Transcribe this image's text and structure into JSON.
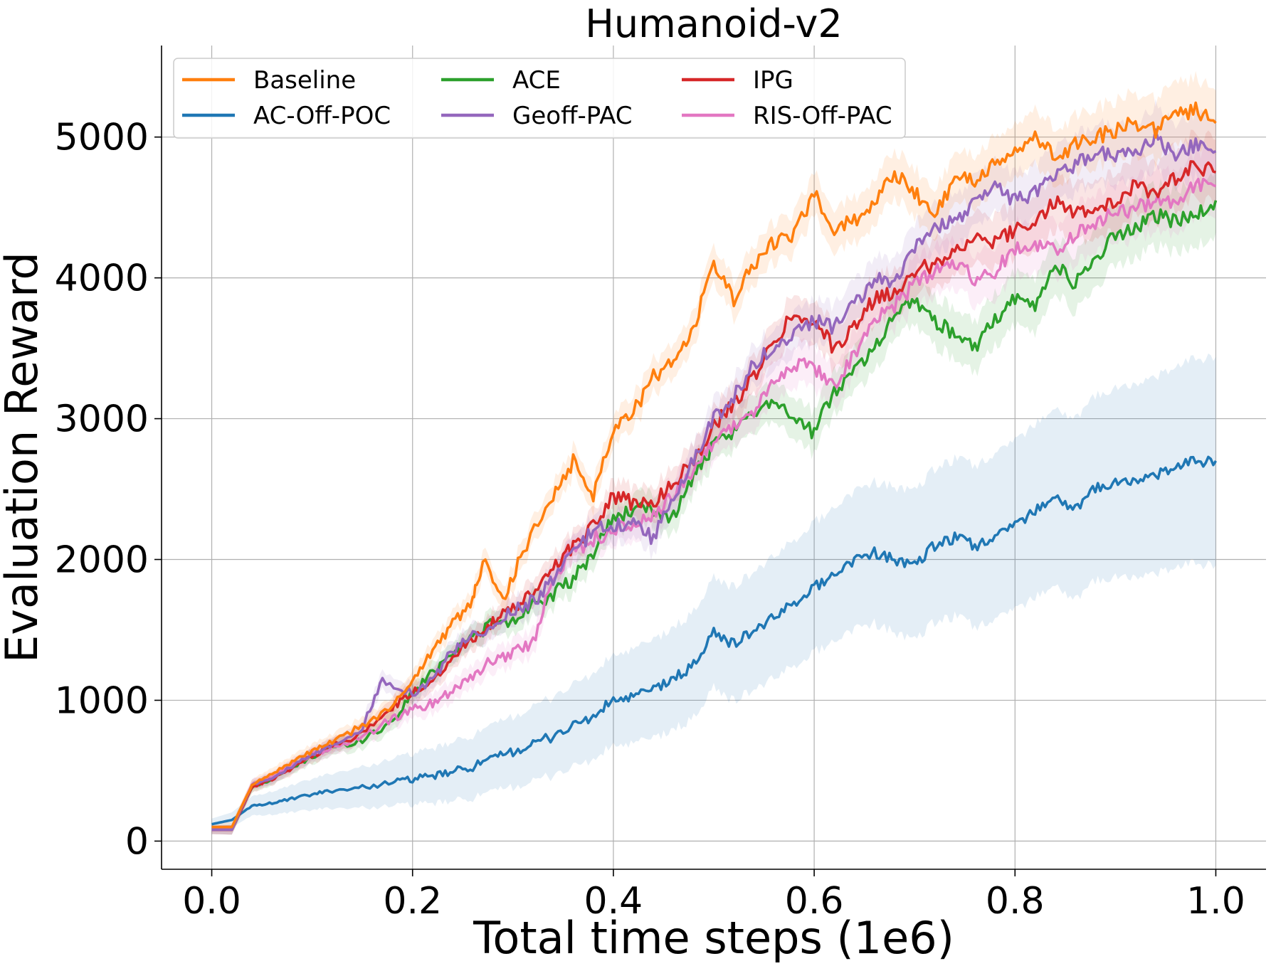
{
  "chart_data": {
    "type": "line",
    "title": "Humanoid-v2",
    "xlabel": "Total time steps (1e6)",
    "ylabel": "Evaluation Reward",
    "xlim": [
      -0.05,
      1.05
    ],
    "ylim": [
      -200,
      5650
    ],
    "xticks": [
      "0.0",
      "0.2",
      "0.4",
      "0.6",
      "0.8",
      "1.0"
    ],
    "yticks": [
      "0",
      "1000",
      "2000",
      "3000",
      "4000",
      "5000"
    ],
    "grid": true,
    "legend_position": "top-left",
    "legend_columns": 3,
    "series": [
      {
        "name": "Baseline",
        "color": "#ff7f0e",
        "x": [
          0.0,
          0.02,
          0.04,
          0.06,
          0.08,
          0.1,
          0.12,
          0.15,
          0.18,
          0.2,
          0.22,
          0.24,
          0.26,
          0.27,
          0.29,
          0.31,
          0.34,
          0.36,
          0.38,
          0.4,
          0.42,
          0.44,
          0.46,
          0.48,
          0.5,
          0.52,
          0.54,
          0.56,
          0.58,
          0.6,
          0.62,
          0.64,
          0.66,
          0.68,
          0.7,
          0.72,
          0.74,
          0.76,
          0.78,
          0.8,
          0.82,
          0.84,
          0.86,
          0.88,
          0.9,
          0.92,
          0.94,
          0.96,
          0.98,
          1.0
        ],
        "y": [
          100,
          100,
          400,
          480,
          560,
          640,
          700,
          820,
          950,
          1150,
          1350,
          1550,
          1700,
          2000,
          1700,
          2050,
          2450,
          2700,
          2450,
          2950,
          3050,
          3300,
          3400,
          3650,
          4100,
          3850,
          4100,
          4250,
          4300,
          4600,
          4350,
          4400,
          4550,
          4750,
          4600,
          4450,
          4700,
          4700,
          4800,
          4900,
          5000,
          4850,
          4950,
          5000,
          5050,
          5100,
          5050,
          5150,
          5200,
          5100
        ]
      },
      {
        "name": "AC-Off-POC",
        "color": "#1f77b4",
        "x": [
          0.0,
          0.02,
          0.04,
          0.06,
          0.08,
          0.1,
          0.12,
          0.15,
          0.18,
          0.2,
          0.22,
          0.24,
          0.26,
          0.28,
          0.3,
          0.32,
          0.34,
          0.36,
          0.38,
          0.4,
          0.42,
          0.44,
          0.46,
          0.48,
          0.5,
          0.52,
          0.54,
          0.56,
          0.58,
          0.6,
          0.62,
          0.64,
          0.66,
          0.68,
          0.7,
          0.72,
          0.74,
          0.76,
          0.78,
          0.8,
          0.82,
          0.84,
          0.86,
          0.88,
          0.9,
          0.92,
          0.94,
          0.96,
          0.98,
          1.0
        ],
        "y": [
          120,
          150,
          250,
          270,
          300,
          330,
          360,
          380,
          420,
          440,
          460,
          490,
          530,
          580,
          640,
          680,
          750,
          820,
          880,
          1000,
          1020,
          1080,
          1150,
          1250,
          1480,
          1400,
          1500,
          1580,
          1700,
          1800,
          1900,
          2000,
          2050,
          2000,
          1950,
          2100,
          2150,
          2100,
          2150,
          2250,
          2350,
          2450,
          2350,
          2500,
          2550,
          2550,
          2600,
          2650,
          2700,
          2700
        ]
      },
      {
        "name": "ACE",
        "color": "#2ca02c",
        "x": [
          0.0,
          0.02,
          0.04,
          0.06,
          0.08,
          0.1,
          0.12,
          0.15,
          0.18,
          0.2,
          0.22,
          0.24,
          0.26,
          0.28,
          0.3,
          0.32,
          0.34,
          0.36,
          0.38,
          0.4,
          0.42,
          0.44,
          0.46,
          0.48,
          0.5,
          0.52,
          0.54,
          0.56,
          0.58,
          0.6,
          0.62,
          0.64,
          0.66,
          0.68,
          0.7,
          0.72,
          0.74,
          0.76,
          0.78,
          0.8,
          0.82,
          0.84,
          0.86,
          0.88,
          0.9,
          0.92,
          0.94,
          0.96,
          0.98,
          1.0
        ],
        "y": [
          80,
          80,
          380,
          440,
          520,
          600,
          660,
          720,
          850,
          1050,
          1200,
          1350,
          1450,
          1550,
          1550,
          1700,
          1750,
          1850,
          2050,
          2300,
          2350,
          2350,
          2300,
          2600,
          2800,
          2900,
          3050,
          3150,
          3000,
          2900,
          3200,
          3350,
          3500,
          3750,
          3850,
          3700,
          3600,
          3500,
          3700,
          3850,
          3800,
          4100,
          3950,
          4150,
          4300,
          4350,
          4450,
          4400,
          4450,
          4550
        ]
      },
      {
        "name": "Geoff-PAC",
        "color": "#9467bd",
        "x": [
          0.0,
          0.02,
          0.04,
          0.06,
          0.08,
          0.1,
          0.12,
          0.15,
          0.17,
          0.2,
          0.22,
          0.24,
          0.26,
          0.28,
          0.3,
          0.32,
          0.34,
          0.36,
          0.38,
          0.4,
          0.42,
          0.44,
          0.46,
          0.48,
          0.5,
          0.52,
          0.54,
          0.56,
          0.58,
          0.6,
          0.62,
          0.64,
          0.66,
          0.68,
          0.7,
          0.72,
          0.74,
          0.76,
          0.78,
          0.8,
          0.82,
          0.84,
          0.86,
          0.88,
          0.9,
          0.92,
          0.94,
          0.96,
          0.98,
          1.0
        ],
        "y": [
          80,
          80,
          400,
          450,
          530,
          610,
          680,
          800,
          1150,
          1050,
          1150,
          1350,
          1450,
          1500,
          1650,
          1700,
          1850,
          2050,
          2200,
          2250,
          2250,
          2150,
          2450,
          2700,
          3000,
          3150,
          3400,
          3500,
          3600,
          3700,
          3650,
          3800,
          4000,
          3950,
          4200,
          4350,
          4400,
          4550,
          4650,
          4550,
          4600,
          4750,
          4800,
          4900,
          4850,
          4900,
          5000,
          4850,
          4950,
          4900
        ]
      },
      {
        "name": "IPG",
        "color": "#d62728",
        "x": [
          0.0,
          0.02,
          0.04,
          0.06,
          0.08,
          0.1,
          0.12,
          0.15,
          0.18,
          0.2,
          0.22,
          0.24,
          0.26,
          0.28,
          0.3,
          0.32,
          0.34,
          0.36,
          0.38,
          0.4,
          0.42,
          0.44,
          0.46,
          0.48,
          0.5,
          0.52,
          0.54,
          0.56,
          0.58,
          0.6,
          0.62,
          0.64,
          0.66,
          0.68,
          0.7,
          0.72,
          0.74,
          0.76,
          0.78,
          0.8,
          0.82,
          0.84,
          0.86,
          0.88,
          0.9,
          0.92,
          0.94,
          0.96,
          0.98,
          1.0
        ],
        "y": [
          80,
          80,
          380,
          440,
          520,
          600,
          680,
          760,
          950,
          1050,
          1150,
          1300,
          1450,
          1550,
          1650,
          1750,
          1950,
          2100,
          2250,
          2450,
          2400,
          2400,
          2550,
          2700,
          2950,
          3100,
          3300,
          3550,
          3750,
          3700,
          3500,
          3650,
          3850,
          3900,
          4050,
          4100,
          4200,
          4300,
          4250,
          4350,
          4400,
          4550,
          4450,
          4500,
          4550,
          4650,
          4600,
          4700,
          4800,
          4750
        ]
      },
      {
        "name": "RIS-Off-PAC",
        "color": "#e377c2",
        "x": [
          0.0,
          0.02,
          0.04,
          0.06,
          0.08,
          0.1,
          0.12,
          0.15,
          0.18,
          0.2,
          0.22,
          0.24,
          0.26,
          0.28,
          0.3,
          0.32,
          0.34,
          0.36,
          0.38,
          0.4,
          0.42,
          0.44,
          0.46,
          0.48,
          0.5,
          0.52,
          0.54,
          0.56,
          0.58,
          0.6,
          0.62,
          0.64,
          0.66,
          0.68,
          0.7,
          0.72,
          0.74,
          0.76,
          0.78,
          0.8,
          0.82,
          0.84,
          0.86,
          0.88,
          0.9,
          0.92,
          0.94,
          0.96,
          0.98,
          1.0
        ],
        "y": [
          80,
          80,
          400,
          460,
          540,
          610,
          660,
          740,
          870,
          930,
          980,
          1080,
          1180,
          1280,
          1350,
          1400,
          1900,
          2050,
          2150,
          2200,
          2250,
          2300,
          2450,
          2650,
          2850,
          2950,
          3050,
          3250,
          3400,
          3350,
          3250,
          3450,
          3700,
          3800,
          3950,
          4050,
          4100,
          4000,
          4050,
          4200,
          4250,
          4200,
          4300,
          4400,
          4450,
          4500,
          4550,
          4550,
          4650,
          4650
        ]
      }
    ]
  }
}
